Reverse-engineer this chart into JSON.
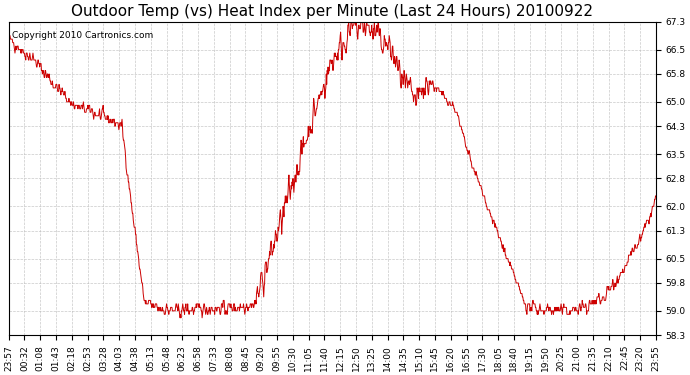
{
  "title": "Outdoor Temp (vs) Heat Index per Minute (Last 24 Hours) 20100922",
  "copyright": "Copyright 2010 Cartronics.com",
  "line_color": "#cc0000",
  "background_color": "#ffffff",
  "plot_bg_color": "#ffffff",
  "grid_color": "#bbbbbb",
  "ylim": [
    58.3,
    67.3
  ],
  "yticks": [
    58.3,
    59.0,
    59.8,
    60.5,
    61.3,
    62.0,
    62.8,
    63.5,
    64.3,
    65.0,
    65.8,
    66.5,
    67.3
  ],
  "xtick_labels": [
    "23:57",
    "00:32",
    "01:08",
    "01:43",
    "02:18",
    "02:53",
    "03:28",
    "04:03",
    "04:38",
    "05:13",
    "05:48",
    "06:23",
    "06:58",
    "07:33",
    "08:08",
    "08:45",
    "09:20",
    "09:55",
    "10:30",
    "11:05",
    "11:40",
    "12:15",
    "12:50",
    "13:25",
    "14:00",
    "14:35",
    "15:10",
    "15:45",
    "16:20",
    "16:55",
    "17:30",
    "18:05",
    "18:40",
    "19:15",
    "19:50",
    "20:25",
    "21:00",
    "21:35",
    "22:10",
    "22:45",
    "23:20",
    "23:55"
  ],
  "n_points": 1440,
  "title_fontsize": 11,
  "tick_fontsize": 6.5,
  "copyright_fontsize": 6.5
}
